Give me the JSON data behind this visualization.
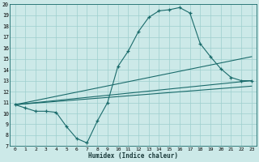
{
  "xlabel": "Humidex (Indice chaleur)",
  "xlim": [
    -0.5,
    23.5
  ],
  "ylim": [
    7,
    20
  ],
  "yticks": [
    7,
    8,
    9,
    10,
    11,
    12,
    13,
    14,
    15,
    16,
    17,
    18,
    19,
    20
  ],
  "xticks": [
    0,
    1,
    2,
    3,
    4,
    5,
    6,
    7,
    8,
    9,
    10,
    11,
    12,
    13,
    14,
    15,
    16,
    17,
    18,
    19,
    20,
    21,
    22,
    23
  ],
  "bg_color": "#cce9e8",
  "line_color": "#1a6b6b",
  "grid_color": "#9ecfce",
  "line1_x": [
    0,
    1,
    2,
    3,
    4,
    5,
    6,
    7,
    8,
    9,
    10,
    11,
    12,
    13,
    14,
    15,
    16,
    17,
    18,
    19,
    20,
    21,
    22,
    23
  ],
  "line1_y": [
    10.8,
    10.5,
    10.2,
    10.2,
    10.1,
    8.8,
    7.7,
    7.3,
    9.3,
    11.0,
    14.3,
    15.7,
    17.5,
    18.8,
    19.4,
    19.5,
    19.7,
    19.2,
    16.4,
    15.2,
    14.1,
    13.3,
    13.0,
    13.0
  ],
  "line2_x": [
    0,
    23
  ],
  "line2_y": [
    10.8,
    15.2
  ],
  "line3_x": [
    0,
    23
  ],
  "line3_y": [
    10.8,
    13.0
  ],
  "line4_x": [
    0,
    23
  ],
  "line4_y": [
    10.8,
    12.5
  ]
}
